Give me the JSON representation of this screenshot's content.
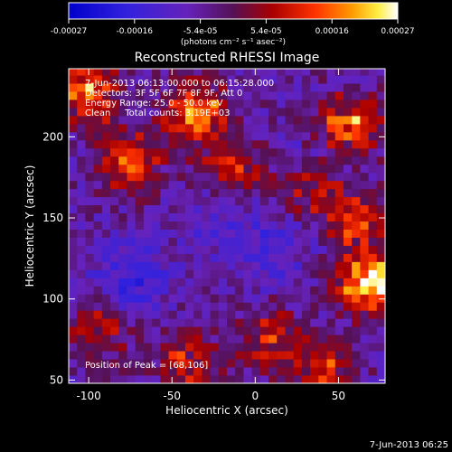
{
  "colorbar": {
    "ticks": [
      "-0.00027",
      "-0.00016",
      "-5.4e-05",
      "5.4e-05",
      "0.00016",
      "0.00027"
    ],
    "unit_label": "(photons cm⁻² s⁻¹ asec⁻²)"
  },
  "chart_data": {
    "type": "heatmap",
    "title": "Reconstructed RHESSI Image",
    "xlabel": "Heliocentric X (arcsec)",
    "ylabel": "Heliocentric Y (arcsec)",
    "xlim": [
      -112,
      78
    ],
    "ylim": [
      48,
      242
    ],
    "x_ticks": [
      -100,
      -50,
      0,
      50
    ],
    "y_ticks": [
      50,
      100,
      150,
      200
    ],
    "value_range": [
      -0.00027,
      0.00027
    ],
    "colormap": "blue-purple-red-yellow-white",
    "annotations": [
      "7-Jun-2013 06:13:00.000 to 06:15:28.000",
      "Detectors: 3F 5F 6F 7F 8F 9F, Att 0",
      "Energy Range: 25.0 - 50.0 keV",
      "Clean     Total counts: 3.19E+03"
    ],
    "peak_label": "Position of Peak = [68,106]",
    "peak_position": [
      68,
      106
    ],
    "hotspots": [
      {
        "x": 70,
        "y": 110,
        "intensity": 1.0
      },
      {
        "x": 55,
        "y": 205,
        "intensity": 0.85
      },
      {
        "x": -35,
        "y": 215,
        "intensity": 0.75
      },
      {
        "x": -100,
        "y": 225,
        "intensity": 0.7
      },
      {
        "x": -15,
        "y": 180,
        "intensity": 0.5
      },
      {
        "x": -75,
        "y": 185,
        "intensity": 0.55
      },
      {
        "x": 35,
        "y": 170,
        "intensity": 0.45
      },
      {
        "x": 60,
        "y": 150,
        "intensity": 0.5
      },
      {
        "x": 10,
        "y": 75,
        "intensity": 0.5
      },
      {
        "x": -40,
        "y": 60,
        "intensity": 0.45
      },
      {
        "x": 40,
        "y": 55,
        "intensity": 0.5
      },
      {
        "x": -95,
        "y": 80,
        "intensity": 0.4
      }
    ],
    "coldspots": [
      {
        "x": -75,
        "y": 115,
        "intensity": 0.5
      },
      {
        "x": 10,
        "y": 130,
        "intensity": 0.35
      },
      {
        "x": 45,
        "y": 190,
        "intensity": 0.4
      },
      {
        "x": -20,
        "y": 150,
        "intensity": 0.3
      }
    ]
  },
  "footer": {
    "timestamp": "7-Jun-2013 06:25"
  }
}
